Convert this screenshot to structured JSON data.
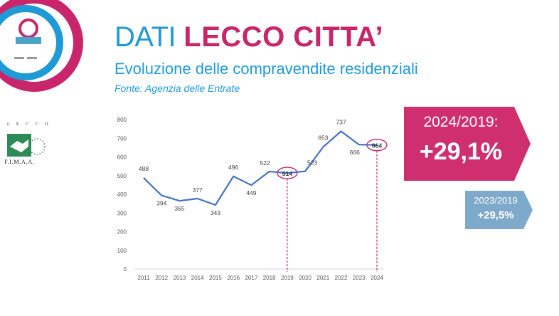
{
  "header": {
    "title_light": "DATI",
    "title_bold": "LECCO CITTA’",
    "subtitle": "Evoluzione delle compravendite residenziali",
    "source": "Fonte: Agenzia delle Entrate"
  },
  "logos": {
    "event_logo_icon": "circular-event-logo",
    "association_top": "L E C C O",
    "association_bottom": "F.I.M.A.A.",
    "association_icon": "handshake-icon"
  },
  "callouts": {
    "main": {
      "year_a": "2024",
      "year_b": "2019",
      "value": "+29,1%",
      "color": "#cf2f6e"
    },
    "secondary": {
      "year_a": "2023",
      "year_b": "2019",
      "value": "+29,5%",
      "color": "#7da9cb"
    }
  },
  "colors": {
    "line": "#4472c4",
    "highlight": "#c8256b",
    "title_blue": "#1e9ad6"
  },
  "chart_data": {
    "type": "line",
    "x": [
      "2011",
      "2012",
      "2013",
      "2014",
      "2015",
      "2016",
      "2017",
      "2018",
      "2019",
      "2020",
      "2021",
      "2022",
      "2023",
      "2024"
    ],
    "series": [
      {
        "values": [
          488,
          394,
          365,
          377,
          343,
          496,
          449,
          522,
          514,
          523,
          653,
          737,
          666,
          664
        ]
      }
    ],
    "data_labels": [
      "488",
      "394",
      "365",
      "377",
      "343",
      "496",
      "449",
      "522",
      "514",
      "523",
      "653",
      "737",
      "666",
      "664"
    ],
    "ylim": [
      0,
      800
    ],
    "yticks": [
      0,
      100,
      200,
      300,
      400,
      500,
      600,
      700,
      800
    ],
    "grid": false,
    "highlighted": [
      "2019",
      "2024"
    ]
  }
}
